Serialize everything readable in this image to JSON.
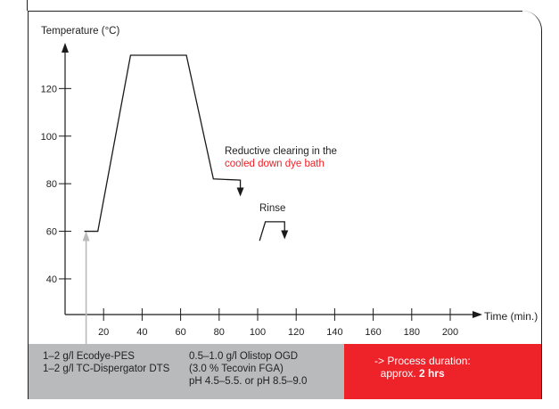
{
  "chart_data": {
    "type": "line",
    "ylabel": "Temperature (°C)",
    "xlabel": "Time (min.)",
    "xlim": [
      0,
      210
    ],
    "ylim": [
      25,
      140
    ],
    "x_ticks": [
      20,
      40,
      60,
      80,
      100,
      120,
      140,
      160,
      180,
      200
    ],
    "y_ticks": [
      40,
      60,
      80,
      100,
      120
    ],
    "series": [
      {
        "x": [
          10,
          17,
          34,
          63,
          77,
          91,
          91
        ],
        "y": [
          60,
          60,
          134,
          134,
          82,
          81.5,
          78
        ]
      },
      {
        "x": [
          101,
          104,
          114,
          114
        ],
        "y": [
          56,
          64,
          64,
          60
        ]
      }
    ],
    "annotations": {
      "clearing_line1": "Reductive clearing in the",
      "clearing_line2": "cooled down dye bath",
      "rinse": "Rinse"
    },
    "colors": {
      "line": "#1a1a1a",
      "accent": "#ee2229",
      "grey_arrow": "#b9babc"
    }
  },
  "footer": {
    "left_col1": [
      "1–2 g/l Ecodye-PES",
      "1–2 g/l TC-Dispergator DTS"
    ],
    "left_col2": [
      "0.5–1.0 g/l Olistop OGD",
      "(3.0 % Tecovin FGA)",
      "pH 4.5–5.5. or pH 8.5–9.0"
    ],
    "duration_line1": "-> Process duration:",
    "duration_prefix": "approx. ",
    "duration_value": "2 hrs"
  }
}
